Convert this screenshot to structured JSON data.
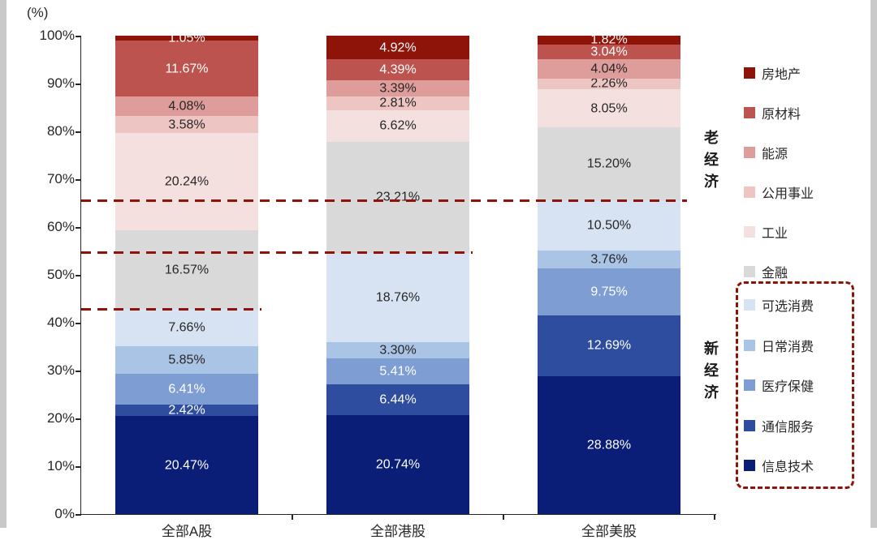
{
  "chart_data": {
    "type": "bar",
    "subtype": "stacked-100-percent",
    "y_axis_title": "(%)",
    "ylim": [
      0,
      100
    ],
    "grid": false,
    "legend_position": "right",
    "y_ticks": [
      "100%",
      "90%",
      "80%",
      "70%",
      "60%",
      "50%",
      "40%",
      "30%",
      "20%",
      "10%",
      "0%"
    ],
    "categories": [
      "全部A股",
      "全部港股",
      "全部美股"
    ],
    "series": [
      {
        "name": "信息技术",
        "color": "#0a1e78",
        "label_color": "#ffffff",
        "values": [
          20.47,
          20.74,
          28.88
        ]
      },
      {
        "name": "通信服务",
        "color": "#2e4d9f",
        "label_color": "#ffffff",
        "values": [
          2.42,
          6.44,
          12.69
        ]
      },
      {
        "name": "医疗保健",
        "color": "#7e9dd3",
        "label_color": "#ffffff",
        "values": [
          6.41,
          5.41,
          9.75
        ]
      },
      {
        "name": "日常消费",
        "color": "#aac4e5",
        "label_color": "#262626",
        "values": [
          5.85,
          3.3,
          3.76
        ]
      },
      {
        "name": "可选消费",
        "color": "#d7e3f3",
        "label_color": "#262626",
        "values": [
          7.66,
          18.76,
          10.5
        ]
      },
      {
        "name": "金融",
        "color": "#d9d9d9",
        "label_color": "#262626",
        "values": [
          16.57,
          23.21,
          15.2
        ]
      },
      {
        "name": "工业",
        "color": "#f4e0df",
        "label_color": "#262626",
        "values": [
          20.24,
          6.62,
          8.05
        ]
      },
      {
        "name": "公用事业",
        "color": "#edc6c4",
        "label_color": "#262626",
        "values": [
          3.58,
          2.81,
          2.26
        ]
      },
      {
        "name": "能源",
        "color": "#de9d9a",
        "label_color": "#262626",
        "values": [
          4.08,
          3.39,
          4.04
        ]
      },
      {
        "name": "原材料",
        "color": "#bd534e",
        "label_color": "#ffffff",
        "values": [
          11.67,
          4.39,
          3.04
        ]
      },
      {
        "name": "房地产",
        "color": "#8e1309",
        "label_color": "#ffffff",
        "values": [
          1.05,
          4.92,
          1.82
        ]
      }
    ],
    "dashed_lines": [
      {
        "value": 42.81,
        "span_categories": 1
      },
      {
        "value": 54.65,
        "span_categories": 2
      },
      {
        "value": 65.58,
        "span_categories": 3
      }
    ],
    "accent_color": "#8e1309",
    "legend": {
      "old_economy_label": "老经济",
      "new_economy_label": "新经济",
      "old_items": [
        "房地产",
        "原材料",
        "能源",
        "公用事业",
        "工业",
        "金融"
      ],
      "new_items": [
        "可选消费",
        "日常消费",
        "医疗保健",
        "通信服务",
        "信息技术"
      ]
    }
  }
}
